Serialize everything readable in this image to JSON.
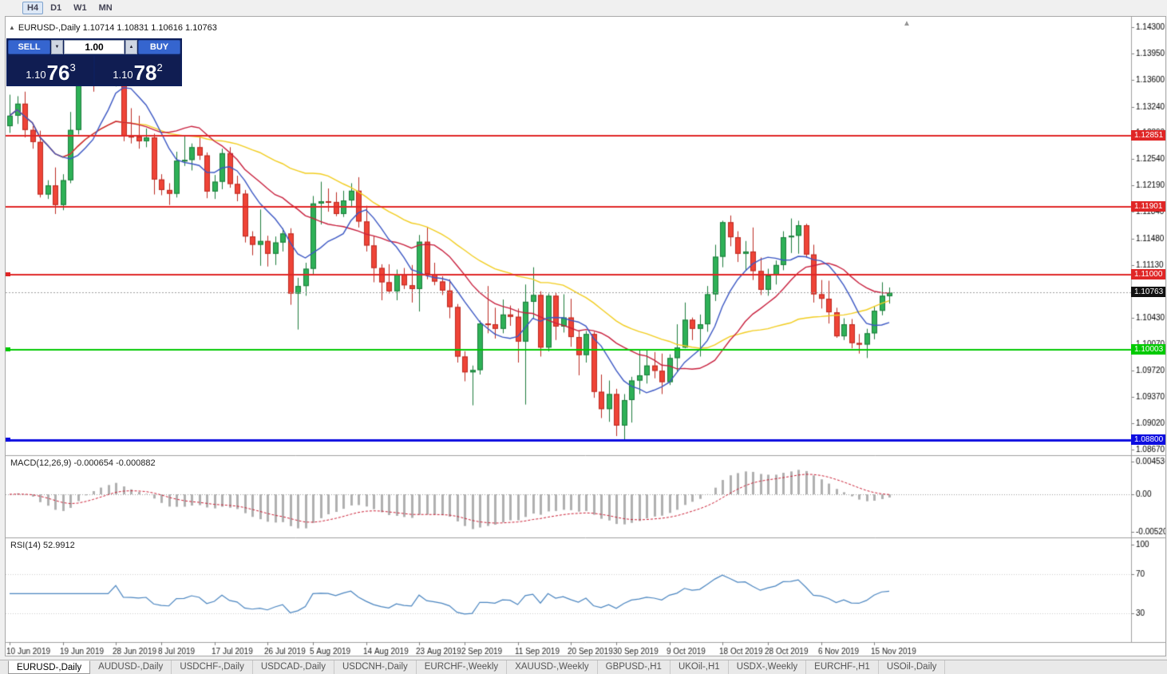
{
  "toolbar": {
    "timeframes": [
      "H4",
      "D1",
      "W1",
      "MN"
    ],
    "active": "H4"
  },
  "chart_title": "EURUSD-,Daily 1.10714 1.10831 1.10616 1.10763",
  "trade_panel": {
    "sell_label": "SELL",
    "buy_label": "BUY",
    "volume": "1.00",
    "sell_price": {
      "base": "1.10",
      "big": "76",
      "sup": "3"
    },
    "buy_price": {
      "base": "1.10",
      "big": "78",
      "sup": "2"
    }
  },
  "indicators": {
    "macd_label": "MACD(12,26,9) -0.000654 -0.000882",
    "rsi_label": "RSI(14) 52.9912"
  },
  "tabs": [
    "EURUSD-,Daily",
    "AUDUSD-,Daily",
    "USDCHF-,Daily",
    "USDCAD-,Daily",
    "USDCNH-,Daily",
    "EURCHF-,Weekly",
    "XAUUSD-,Weekly",
    "GBPUSD-,H1",
    "UKOil-,H1",
    "USDX-,Weekly",
    "EURCHF-,H1",
    "USOil-,Daily"
  ],
  "active_tab": "EURUSD-,Daily",
  "colors": {
    "bull": "#2eb157",
    "bull_border": "#1d7c3c",
    "bear": "#ef4437",
    "bear_border": "#bb2a22",
    "ma_slow": "#f2cd1f",
    "ma_mid": "#c81e3c",
    "ma_fast": "#3b57c4",
    "macd_hist": "#b0b0b0",
    "macd_signal": "#cc2036",
    "rsi_line": "#4a85c0",
    "current_badge": "#111111"
  },
  "chart_data": {
    "type": "candlestick",
    "symbol": "EURUSD-",
    "timeframe": "Daily",
    "last_ohlc": {
      "open": "1.10714",
      "high": "1.10831",
      "low": "1.10616",
      "close": "1.10763"
    },
    "price_scale": [
      "1.14300",
      "1.13950",
      "1.13600",
      "1.13240",
      "1.12890",
      "1.12540",
      "1.12190",
      "1.11840",
      "1.11480",
      "1.11130",
      "1.10780",
      "1.10430",
      "1.10070",
      "1.09720",
      "1.09370",
      "1.09020",
      "1.08670"
    ],
    "hlines": [
      {
        "price": 1.12851,
        "label": "1.12851",
        "color": "#e02626",
        "width": 2,
        "handle": false
      },
      {
        "price": 1.11901,
        "label": "1.11901",
        "color": "#e02626",
        "width": 2,
        "handle": false
      },
      {
        "price": 1.11,
        "label": "1.11000",
        "color": "#e02626",
        "width": 2,
        "handle": true
      },
      {
        "price": 1.10003,
        "label": "1.10003",
        "color": "#00ca00",
        "width": 2,
        "handle": true
      },
      {
        "price": 1.088,
        "label": "1.08800",
        "color": "#0d0de0",
        "width": 3,
        "handle": true
      }
    ],
    "current_price": {
      "value": 1.10763,
      "label": "1.10763"
    },
    "moving_averages": [
      {
        "name": "ma-slow",
        "period": 34,
        "color": "#f2cd1f"
      },
      {
        "name": "ma-mid",
        "period": 17,
        "color": "#c81e3c"
      },
      {
        "name": "ma-fast",
        "period": 8,
        "color": "#3b57c4"
      }
    ],
    "macd": {
      "label": "MACD(12,26,9)",
      "main_value": -0.000654,
      "signal_value": -0.000882,
      "fast": 12,
      "slow": 26,
      "signal": 9,
      "scale": [
        "0.0045360",
        "0.00",
        "-0.0052050"
      ],
      "scale_max": 0.004536,
      "scale_min": -0.005205
    },
    "rsi": {
      "label": "RSI(14)",
      "value": 52.9912,
      "period": 14,
      "scale": [
        {
          "v": 100,
          "label": "100"
        },
        {
          "v": 70,
          "label": "70"
        },
        {
          "v": 30,
          "label": "30"
        }
      ]
    },
    "date_ticks": [
      {
        "bar": 0,
        "label": "10 Jun 2019"
      },
      {
        "bar": 7,
        "label": "19 Jun 2019"
      },
      {
        "bar": 14,
        "label": "28 Jun 2019"
      },
      {
        "bar": 20,
        "label": "8 Jul 2019"
      },
      {
        "bar": 27,
        "label": "17 Jul 2019"
      },
      {
        "bar": 34,
        "label": "26 Jul 2019"
      },
      {
        "bar": 40,
        "label": "5 Aug 2019"
      },
      {
        "bar": 47,
        "label": "14 Aug 2019"
      },
      {
        "bar": 54,
        "label": "23 Aug 2019"
      },
      {
        "bar": 60,
        "label": "2 Sep 2019"
      },
      {
        "bar": 67,
        "label": "11 Sep 2019"
      },
      {
        "bar": 74,
        "label": "20 Sep 2019"
      },
      {
        "bar": 80,
        "label": "30 Sep 2019"
      },
      {
        "bar": 87,
        "label": "9 Oct 2019"
      },
      {
        "bar": 94,
        "label": "18 Oct 2019"
      },
      {
        "bar": 100,
        "label": "28 Oct 2019"
      },
      {
        "bar": 107,
        "label": "6 Nov 2019"
      },
      {
        "bar": 114,
        "label": "15 Nov 2019"
      }
    ],
    "candles": [
      [
        1.1298,
        1.134,
        1.1289,
        1.1312
      ],
      [
        1.1312,
        1.1338,
        1.1301,
        1.1328
      ],
      [
        1.1328,
        1.1344,
        1.1283,
        1.1293
      ],
      [
        1.1293,
        1.1298,
        1.1268,
        1.1277
      ],
      [
        1.1277,
        1.1292,
        1.1203,
        1.1207
      ],
      [
        1.1207,
        1.1226,
        1.1201,
        1.1219
      ],
      [
        1.1219,
        1.1243,
        1.1181,
        1.1193
      ],
      [
        1.1193,
        1.1234,
        1.1186,
        1.1226
      ],
      [
        1.1226,
        1.1317,
        1.1222,
        1.1293
      ],
      [
        1.1293,
        1.1375,
        1.1287,
        1.1365
      ],
      [
        1.1365,
        1.138,
        1.1358,
        1.1372
      ],
      [
        1.1372,
        1.1379,
        1.1344,
        1.1367
      ],
      [
        1.1367,
        1.1377,
        1.1362,
        1.1371
      ],
      [
        1.1371,
        1.1376,
        1.136,
        1.1369
      ],
      [
        1.1369,
        1.138,
        1.1351,
        1.1373
      ],
      [
        1.1365,
        1.1368,
        1.1278,
        1.1285
      ],
      [
        1.1285,
        1.1322,
        1.1275,
        1.1284
      ],
      [
        1.1284,
        1.1312,
        1.1268,
        1.1278
      ],
      [
        1.1278,
        1.1295,
        1.127,
        1.1283
      ],
      [
        1.1283,
        1.1288,
        1.1207,
        1.1227
      ],
      [
        1.1227,
        1.1234,
        1.1206,
        1.1213
      ],
      [
        1.1213,
        1.1222,
        1.1193,
        1.1208
      ],
      [
        1.1208,
        1.1264,
        1.1203,
        1.1252
      ],
      [
        1.1252,
        1.1285,
        1.1245,
        1.1253
      ],
      [
        1.1253,
        1.1275,
        1.1239,
        1.127
      ],
      [
        1.127,
        1.1284,
        1.1253,
        1.1259
      ],
      [
        1.1259,
        1.1263,
        1.1202,
        1.1211
      ],
      [
        1.1211,
        1.1233,
        1.1201,
        1.1224
      ],
      [
        1.1224,
        1.1268,
        1.1214,
        1.1262
      ],
      [
        1.1262,
        1.127,
        1.1216,
        1.1221
      ],
      [
        1.1221,
        1.1232,
        1.1198,
        1.1208
      ],
      [
        1.1208,
        1.1213,
        1.1143,
        1.1151
      ],
      [
        1.1151,
        1.1158,
        1.1126,
        1.114
      ],
      [
        1.114,
        1.1187,
        1.1112,
        1.1145
      ],
      [
        1.1145,
        1.1152,
        1.1111,
        1.1128
      ],
      [
        1.1128,
        1.1151,
        1.1113,
        1.1143
      ],
      [
        1.1143,
        1.1162,
        1.1131,
        1.1155
      ],
      [
        1.1155,
        1.1162,
        1.106,
        1.1075
      ],
      [
        1.1075,
        1.1096,
        1.1027,
        1.1085
      ],
      [
        1.1085,
        1.1116,
        1.1072,
        1.1108
      ],
      [
        1.1108,
        1.1205,
        1.1101,
        1.1195
      ],
      [
        1.1195,
        1.1224,
        1.1167,
        1.1198
      ],
      [
        1.1198,
        1.1215,
        1.1184,
        1.1197
      ],
      [
        1.1197,
        1.121,
        1.1178,
        1.1181
      ],
      [
        1.1181,
        1.1212,
        1.1177,
        1.1199
      ],
      [
        1.1199,
        1.1222,
        1.119,
        1.1212
      ],
      [
        1.1212,
        1.123,
        1.1163,
        1.1171
      ],
      [
        1.1171,
        1.1192,
        1.1131,
        1.1139
      ],
      [
        1.1139,
        1.1152,
        1.109,
        1.1109
      ],
      [
        1.1109,
        1.1114,
        1.1066,
        1.109
      ],
      [
        1.109,
        1.1114,
        1.1075,
        1.1078
      ],
      [
        1.1078,
        1.1107,
        1.1066,
        1.11
      ],
      [
        1.11,
        1.1109,
        1.1081,
        1.1086
      ],
      [
        1.1086,
        1.1113,
        1.1063,
        1.1081
      ],
      [
        1.1081,
        1.1153,
        1.1051,
        1.1144
      ],
      [
        1.1144,
        1.1164,
        1.1094,
        1.1101
      ],
      [
        1.1101,
        1.1116,
        1.1086,
        1.1091
      ],
      [
        1.1091,
        1.1098,
        1.1073,
        1.1079
      ],
      [
        1.1079,
        1.1094,
        1.1042,
        1.1057
      ],
      [
        1.1057,
        1.1061,
        1.0983,
        1.0991
      ],
      [
        1.0991,
        1.0998,
        1.0958,
        1.097
      ],
      [
        1.097,
        1.0979,
        1.0926,
        1.0973
      ],
      [
        1.0973,
        1.1039,
        1.0967,
        1.1035
      ],
      [
        1.1035,
        1.1085,
        1.1022,
        1.1034
      ],
      [
        1.1034,
        1.1056,
        1.1015,
        1.1028
      ],
      [
        1.1028,
        1.1067,
        1.1022,
        1.1047
      ],
      [
        1.1047,
        1.1059,
        1.1032,
        1.1044
      ],
      [
        1.1044,
        1.1055,
        1.0983,
        1.1011
      ],
      [
        1.1011,
        1.1087,
        1.0927,
        1.1064
      ],
      [
        1.1064,
        1.111,
        1.1042,
        1.1073
      ],
      [
        1.1073,
        1.1078,
        1.0991,
        1.1003
      ],
      [
        1.1003,
        1.1075,
        1.0998,
        1.1072
      ],
      [
        1.1072,
        1.1076,
        1.1013,
        1.1031
      ],
      [
        1.1031,
        1.1074,
        1.1023,
        1.1043
      ],
      [
        1.1043,
        1.1068,
        1.1004,
        1.1017
      ],
      [
        1.1017,
        1.1025,
        1.0966,
        1.0993
      ],
      [
        1.0993,
        1.1025,
        1.0983,
        1.1021
      ],
      [
        1.1021,
        1.1024,
        1.0936,
        1.0944
      ],
      [
        1.0944,
        1.0967,
        1.0909,
        1.0921
      ],
      [
        1.0921,
        1.0959,
        1.0904,
        1.0941
      ],
      [
        1.0941,
        1.0948,
        1.0885,
        1.0899
      ],
      [
        1.0899,
        1.0941,
        1.0879,
        1.0933
      ],
      [
        1.0933,
        1.0964,
        1.0903,
        1.0959
      ],
      [
        1.0959,
        1.0999,
        1.0941,
        1.0966
      ],
      [
        1.0966,
        1.0999,
        1.0955,
        1.0979
      ],
      [
        1.0979,
        1.0997,
        1.0962,
        1.0972
      ],
      [
        1.0972,
        1.0995,
        1.0941,
        1.0957
      ],
      [
        1.0957,
        1.0994,
        1.0953,
        1.0989
      ],
      [
        1.0989,
        1.1034,
        1.0971,
        1.1003
      ],
      [
        1.1003,
        1.1063,
        1.1002,
        1.104
      ],
      [
        1.104,
        1.1043,
        1.1013,
        1.1028
      ],
      [
        1.1028,
        1.1047,
        1.0991,
        1.1034
      ],
      [
        1.1034,
        1.1085,
        1.1024,
        1.1074
      ],
      [
        1.1074,
        1.114,
        1.1065,
        1.1124
      ],
      [
        1.1124,
        1.1172,
        1.111,
        1.117
      ],
      [
        1.117,
        1.1179,
        1.1138,
        1.115
      ],
      [
        1.115,
        1.1158,
        1.1117,
        1.1128
      ],
      [
        1.1128,
        1.1145,
        1.1106,
        1.1131
      ],
      [
        1.1131,
        1.1163,
        1.1093,
        1.1105
      ],
      [
        1.1105,
        1.1123,
        1.1073,
        1.108
      ],
      [
        1.108,
        1.1108,
        1.1072,
        1.1099
      ],
      [
        1.1099,
        1.1119,
        1.1087,
        1.1113
      ],
      [
        1.1113,
        1.1158,
        1.1106,
        1.115
      ],
      [
        1.115,
        1.1175,
        1.1129,
        1.1152
      ],
      [
        1.1152,
        1.1172,
        1.1128,
        1.1166
      ],
      [
        1.1166,
        1.1168,
        1.1123,
        1.1127
      ],
      [
        1.1127,
        1.114,
        1.1063,
        1.1074
      ],
      [
        1.1074,
        1.1093,
        1.1055,
        1.1068
      ],
      [
        1.1068,
        1.1092,
        1.1035,
        1.105
      ],
      [
        1.105,
        1.1056,
        1.1016,
        1.1018
      ],
      [
        1.1018,
        1.1042,
        1.1013,
        1.1034
      ],
      [
        1.1034,
        1.1041,
        1.1002,
        1.1009
      ],
      [
        1.1009,
        1.1021,
        1.0995,
        1.1007
      ],
      [
        1.1007,
        1.1028,
        1.0989,
        1.1022
      ],
      [
        1.1022,
        1.1058,
        1.1014,
        1.1052
      ],
      [
        1.1052,
        1.109,
        1.1046,
        1.1072
      ],
      [
        1.10714,
        1.10831,
        1.10616,
        1.10763
      ]
    ]
  }
}
